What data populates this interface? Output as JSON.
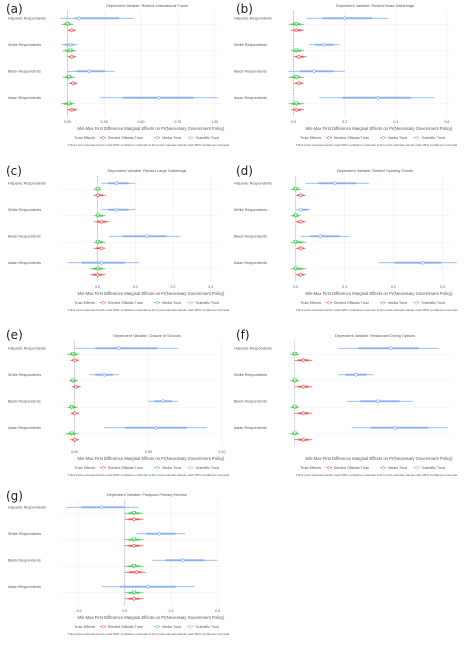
{
  "colors": {
    "elected": "#ef4a4a",
    "media": "#3ec64a",
    "scientific": "#7aaaf2",
    "grid": "#ececec",
    "zero": "#8a8a8a",
    "text": "#555555"
  },
  "legend": {
    "title": "Trust Effects",
    "items": [
      "Elected Officials Trust",
      "Media Trust",
      "Scientific Trust"
    ]
  },
  "chart_data": [
    {
      "letter": "(a)",
      "type": "scatter",
      "title": "Dependent Variable: Restrict International Travel",
      "xlabel": "Min-Max First Difference Marginal Effects on Pr(Necessary Government Policy)",
      "note": "Thick point-estimate bands mark 90% confidence intervals & thin point-estimate bands mark 95% confidence intervals.",
      "ticks": [
        "0.00",
        "0.25",
        "0.50",
        "0.75",
        "1.00"
      ],
      "tick_values": [
        0,
        0.25,
        0.5,
        0.75,
        1.0
      ],
      "xlim": [
        -0.05,
        1.05
      ],
      "groups": [
        "Hispanic Respondents",
        "White Respondents",
        "Black Respondents",
        "Asian Respondents"
      ],
      "series": [
        {
          "name": "Scientific Trust",
          "values": [
            0.08,
            0.02,
            0.15,
            0.62
          ],
          "ci95": [
            [
              -0.05,
              0.45
            ],
            [
              -0.04,
              0.07
            ],
            [
              0.0,
              0.32
            ],
            [
              0.22,
              1.02
            ]
          ]
        },
        {
          "name": "Media Trust",
          "values": [
            0.0,
            0.02,
            0.01,
            0.01
          ],
          "ci95": [
            [
              -0.04,
              0.04
            ],
            [
              -0.03,
              0.06
            ],
            [
              -0.03,
              0.05
            ],
            [
              -0.04,
              0.05
            ]
          ]
        },
        {
          "name": "Elected Officials Trust",
          "values": [
            0.03,
            0.03,
            0.04,
            0.03
          ],
          "ci95": [
            [
              0.0,
              0.06
            ],
            [
              0.0,
              0.06
            ],
            [
              0.01,
              0.07
            ],
            [
              0.0,
              0.07
            ]
          ]
        }
      ]
    },
    {
      "letter": "(b)",
      "type": "scatter",
      "title": "Dependent Variable: Restrict Mass Gatherings",
      "xlabel": "Min-Max First Difference Marginal Effects on Pr(Necessary Government Policy)",
      "note": "Thick point-estimate bands mark 90% confidence intervals & thin point-estimate bands mark 95% confidence intervals.",
      "ticks": [
        "0.0",
        "0.2",
        "0.4",
        "0.6"
      ],
      "tick_values": [
        0,
        0.2,
        0.4,
        0.6
      ],
      "xlim": [
        -0.03,
        0.62
      ],
      "groups": [
        "Hispanic Respondents",
        "White Respondents",
        "Black Respondents",
        "Asian Respondents"
      ],
      "series": [
        {
          "name": "Scientific Trust",
          "values": [
            0.2,
            0.12,
            0.08,
            0.33
          ],
          "ci95": [
            [
              0.05,
              0.37
            ],
            [
              0.06,
              0.18
            ],
            [
              -0.02,
              0.2
            ],
            [
              0.1,
              0.55
            ]
          ]
        },
        {
          "name": "Media Trust",
          "values": [
            0.01,
            0.01,
            0.01,
            0.01
          ],
          "ci95": [
            [
              -0.02,
              0.04
            ],
            [
              -0.01,
              0.04
            ],
            [
              -0.02,
              0.04
            ],
            [
              -0.02,
              0.04
            ]
          ]
        },
        {
          "name": "Elected Officials Trust",
          "values": [
            0.01,
            0.02,
            0.02,
            0.01
          ],
          "ci95": [
            [
              -0.01,
              0.04
            ],
            [
              0.0,
              0.05
            ],
            [
              0.0,
              0.04
            ],
            [
              -0.01,
              0.04
            ]
          ]
        }
      ]
    },
    {
      "letter": "(c)",
      "type": "scatter",
      "title": "Dependent Variable: Restrict Large Gatherings",
      "xlabel": "Min-Max First Difference Marginal Effects on Pr(Necessary Government Policy)",
      "note": "Thick point-estimate bands mark 90% confidence intervals & thin point-estimate bands mark 95% confidence intervals.",
      "ticks": [
        "0.0",
        "0.1",
        "0.2",
        "0.3"
      ],
      "tick_values": [
        0,
        0.1,
        0.2,
        0.3
      ],
      "xlim": [
        -0.1,
        0.33
      ],
      "groups": [
        "Hispanic Respondents",
        "White Respondents",
        "Black Respondents",
        "Asian Respondents"
      ],
      "series": [
        {
          "name": "Scientific Trust",
          "values": [
            0.05,
            0.05,
            0.13,
            0.01
          ],
          "ci95": [
            [
              0.01,
              0.1
            ],
            [
              0.01,
              0.1
            ],
            [
              0.03,
              0.22
            ],
            [
              -0.08,
              0.11
            ]
          ]
        },
        {
          "name": "Media Trust",
          "values": [
            0.0,
            0.0,
            0.0,
            0.0
          ],
          "ci95": [
            [
              -0.01,
              0.01
            ],
            [
              -0.01,
              0.02
            ],
            [
              -0.01,
              0.02
            ],
            [
              -0.02,
              0.02
            ]
          ]
        },
        {
          "name": "Elected Officials Trust",
          "values": [
            0.0,
            0.01,
            0.01,
            0.0
          ],
          "ci95": [
            [
              -0.01,
              0.02
            ],
            [
              -0.01,
              0.03
            ],
            [
              -0.01,
              0.02
            ],
            [
              -0.02,
              0.02
            ]
          ]
        }
      ]
    },
    {
      "letter": "(d)",
      "type": "scatter",
      "title": "Dependent Variable: Restrict Sporting Events",
      "xlabel": "Min-Max First Difference Marginal Effects on Pr(Necessary Government Policy)",
      "note": "Thick point-estimate bands mark 90% confidence intervals & thin point-estimate bands mark 95% confidence intervals.",
      "ticks": [
        "0.0",
        "0.1",
        "0.2",
        "0.3"
      ],
      "tick_values": [
        0,
        0.1,
        0.2,
        0.3
      ],
      "xlim": [
        -0.02,
        0.32
      ],
      "groups": [
        "Hispanic Respondents",
        "White Respondents",
        "Black Respondents",
        "Asian Respondents"
      ],
      "series": [
        {
          "name": "Scientific Trust",
          "values": [
            0.08,
            0.01,
            0.05,
            0.26
          ],
          "ci95": [
            [
              0.02,
              0.15
            ],
            [
              0.0,
              0.03
            ],
            [
              0.01,
              0.11
            ],
            [
              0.17,
              0.33
            ]
          ]
        },
        {
          "name": "Media Trust",
          "values": [
            0.0,
            0.0,
            0.0,
            0.0
          ],
          "ci95": [
            [
              -0.01,
              0.01
            ],
            [
              -0.01,
              0.01
            ],
            [
              -0.01,
              0.02
            ],
            [
              -0.01,
              0.02
            ]
          ]
        },
        {
          "name": "Elected Officials Trust",
          "values": [
            0.01,
            0.01,
            0.01,
            0.01
          ],
          "ci95": [
            [
              0.0,
              0.02
            ],
            [
              0.0,
              0.02
            ],
            [
              0.0,
              0.02
            ],
            [
              0.0,
              0.02
            ]
          ]
        }
      ]
    },
    {
      "letter": "(e)",
      "type": "scatter",
      "title": "Dependent Variable: Closure of Schools",
      "xlabel": "Min-Max First Difference Marginal Effects on Pr(Necessary Government Policy)",
      "note": "Thick point-estimate bands mark 90% confidence intervals & thin point-estimate bands mark 95% confidence intervals.",
      "ticks": [
        "0.00",
        "0.05",
        "0.10"
      ],
      "tick_values": [
        0,
        0.05,
        0.1
      ],
      "xlim": [
        -0.01,
        0.1
      ],
      "groups": [
        "Hispanic Respondents",
        "White Respondents",
        "Black Respondents",
        "Asian Respondents"
      ],
      "series": [
        {
          "name": "Scientific Trust",
          "values": [
            0.03,
            0.02,
            0.06,
            0.055
          ],
          "ci95": [
            [
              0.0,
              0.07
            ],
            [
              0.01,
              0.03
            ],
            [
              0.05,
              0.07
            ],
            [
              0.02,
              0.09
            ]
          ]
        },
        {
          "name": "Media Trust",
          "values": [
            -0.001,
            -0.001,
            -0.002,
            -0.002
          ],
          "ci95": [
            [
              -0.005,
              0.003
            ],
            [
              -0.004,
              0.002
            ],
            [
              -0.005,
              0.002
            ],
            [
              -0.006,
              0.002
            ]
          ]
        },
        {
          "name": "Elected Officials Trust",
          "values": [
            0.0,
            0.001,
            0.0,
            0.0
          ],
          "ci95": [
            [
              -0.003,
              0.003
            ],
            [
              -0.002,
              0.004
            ],
            [
              -0.003,
              0.003
            ],
            [
              -0.003,
              0.003
            ]
          ]
        }
      ]
    },
    {
      "letter": "(f)",
      "type": "scatter",
      "title": "Dependent Variable: Restaurant Dining Options",
      "xlabel": "Min-Max First Difference Marginal Effects on Pr(Necessary Government Policy)",
      "note": "Thick point-estimate bands mark 90% confidence intervals & thin point-estimate bands mark 95% confidence intervals.",
      "ticks": [],
      "tick_values": [],
      "xlim": [
        -0.02,
        0.36
      ],
      "groups": [
        "Hispanic Respondents",
        "White Respondents",
        "Black Respondents",
        "Asian Respondents"
      ],
      "series": [
        {
          "name": "Scientific Trust",
          "values": [
            0.22,
            0.14,
            0.19,
            0.23
          ],
          "ci95": [
            [
              0.1,
              0.33
            ],
            [
              0.1,
              0.18
            ],
            [
              0.12,
              0.27
            ],
            [
              0.13,
              0.35
            ]
          ]
        },
        {
          "name": "Media Trust",
          "values": [
            0.0,
            0.0,
            0.0,
            0.0
          ],
          "ci95": [
            [
              -0.01,
              0.01
            ],
            [
              -0.01,
              0.01
            ],
            [
              -0.01,
              0.01
            ],
            [
              -0.01,
              0.01
            ]
          ]
        },
        {
          "name": "Elected Officials Trust",
          "values": [
            0.02,
            0.02,
            0.02,
            0.02
          ],
          "ci95": [
            [
              0.0,
              0.04
            ],
            [
              0.0,
              0.04
            ],
            [
              0.0,
              0.04
            ],
            [
              0.0,
              0.04
            ]
          ]
        }
      ]
    },
    {
      "letter": "(g)",
      "type": "scatter",
      "title": "Dependent Variable: Postpone Primary Election",
      "xlabel": "Min-Max First Difference Marginal Effects on Pr(Necessary Government Policy)",
      "note": "Thick point-estimate bands mark 90% confidence intervals & thin point-estimate bands mark 95% confidence intervals.",
      "ticks": [
        "-0.2",
        "0.0",
        "0.2",
        "0.4"
      ],
      "tick_values": [
        -0.2,
        0,
        0.2,
        0.4
      ],
      "xlim": [
        -0.28,
        0.42
      ],
      "groups": [
        "Hispanic Respondents",
        "White Respondents",
        "Black Respondents",
        "Asian Respondents"
      ],
      "series": [
        {
          "name": "Scientific Trust",
          "values": [
            -0.1,
            0.15,
            0.25,
            0.1
          ],
          "ci95": [
            [
              -0.25,
              0.06
            ],
            [
              0.05,
              0.26
            ],
            [
              0.12,
              0.4
            ],
            [
              -0.1,
              0.3
            ]
          ]
        },
        {
          "name": "Media Trust",
          "values": [
            0.04,
            0.04,
            0.04,
            0.04
          ],
          "ci95": [
            [
              0.0,
              0.08
            ],
            [
              0.0,
              0.08
            ],
            [
              0.0,
              0.08
            ],
            [
              0.0,
              0.08
            ]
          ]
        },
        {
          "name": "Elected Officials Trust",
          "values": [
            0.04,
            0.04,
            0.05,
            0.04
          ],
          "ci95": [
            [
              0.0,
              0.08
            ],
            [
              0.0,
              0.08
            ],
            [
              0.0,
              0.09
            ],
            [
              0.0,
              0.08
            ]
          ]
        }
      ]
    }
  ]
}
